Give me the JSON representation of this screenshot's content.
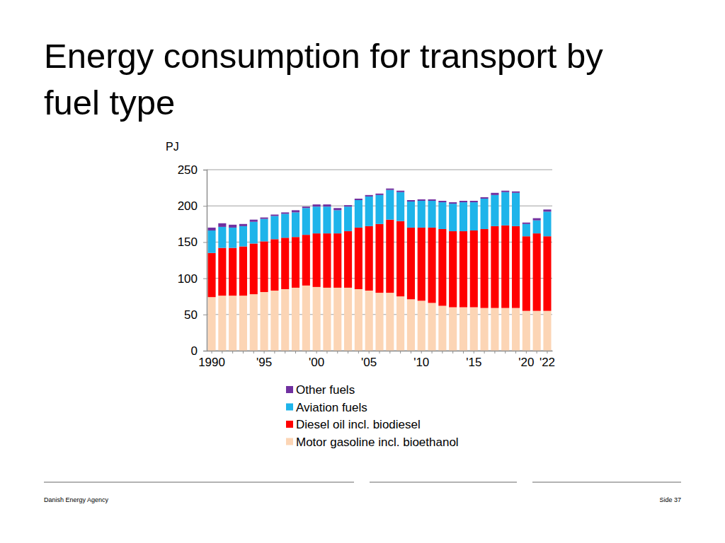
{
  "chart_data": {
    "type": "bar",
    "stacked": true,
    "title": "Energy consumption for transport by fuel type",
    "y_label": "PJ",
    "categories": [
      "1990",
      null,
      null,
      null,
      null,
      "'95",
      null,
      null,
      null,
      null,
      "'00",
      null,
      null,
      null,
      null,
      "'05",
      null,
      null,
      null,
      null,
      "'10",
      null,
      null,
      null,
      null,
      "'15",
      null,
      null,
      null,
      null,
      "'20",
      null,
      "'22"
    ],
    "series": [
      {
        "name": "Motor gasoline incl. bioethanol",
        "color": "#fcd5b5",
        "values": [
          74,
          76,
          76,
          76,
          78,
          81,
          83,
          85,
          87,
          90,
          88,
          87,
          87,
          87,
          85,
          83,
          80,
          80,
          75,
          71,
          69,
          66,
          62,
          60,
          60,
          60,
          59,
          59,
          59,
          59,
          55,
          55,
          55
        ]
      },
      {
        "name": "Diesel oil incl. biodiesel",
        "color": "#ff0000",
        "values": [
          61,
          66,
          66,
          68,
          70,
          70,
          71,
          71,
          70,
          70,
          74,
          75,
          75,
          78,
          85,
          89,
          95,
          101,
          104,
          99,
          101,
          104,
          106,
          105,
          105,
          106,
          109,
          113,
          114,
          113,
          103,
          107,
          103
        ]
      },
      {
        "name": "Aviation fuels",
        "color": "#1eb4ea",
        "values": [
          31,
          29,
          28,
          28,
          30,
          31,
          32,
          33,
          34,
          37,
          37,
          37,
          32,
          34,
          38,
          41,
          40,
          41,
          40,
          36,
          37,
          37,
          37,
          38,
          40,
          39,
          42,
          43,
          46,
          46,
          17,
          18,
          34
        ]
      },
      {
        "name": "Other fuels",
        "color": "#7030a0",
        "values": [
          4,
          5,
          4,
          3,
          3,
          2,
          2,
          2,
          3,
          2,
          3,
          3,
          3,
          2,
          2,
          2,
          2,
          2,
          2,
          2,
          2,
          2,
          2,
          2,
          2,
          2,
          2,
          3,
          2,
          2,
          2,
          3,
          3
        ]
      }
    ],
    "ylim": [
      0,
      250
    ],
    "yticks": [
      0,
      50,
      100,
      150,
      200,
      250
    ],
    "grid": true,
    "legend": "bottom"
  },
  "footer": {
    "source": "Danish Energy Agency",
    "page": "Side 37"
  }
}
